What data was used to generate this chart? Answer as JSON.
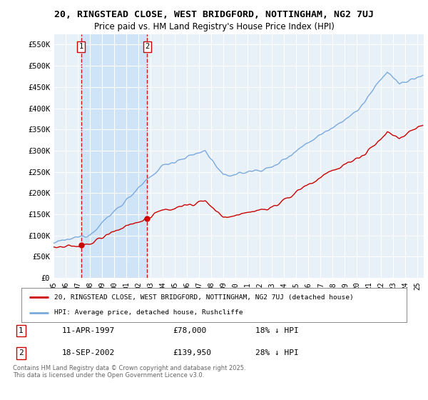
{
  "title": "20, RINGSTEAD CLOSE, WEST BRIDGFORD, NOTTINGHAM, NG2 7UJ",
  "subtitle": "Price paid vs. HM Land Registry's House Price Index (HPI)",
  "ylabel_vals": [
    0,
    50000,
    100000,
    150000,
    200000,
    250000,
    300000,
    350000,
    400000,
    450000,
    500000,
    550000
  ],
  "ylabel_strs": [
    "£0",
    "£50K",
    "£100K",
    "£150K",
    "£200K",
    "£250K",
    "£300K",
    "£350K",
    "£400K",
    "£450K",
    "£500K",
    "£550K"
  ],
  "ylim": [
    0,
    575000
  ],
  "xlim_start": 1995.0,
  "xlim_end": 2025.5,
  "sale1_x": 1997.27,
  "sale1_y": 78000,
  "sale1_label": "1",
  "sale2_x": 2002.72,
  "sale2_y": 139950,
  "sale2_label": "2",
  "shade_color": "#d0e4f7",
  "bg_color": "#e8f0f8",
  "grid_color": "#ffffff",
  "red_color": "#cc0000",
  "blue_color": "#7aaadd",
  "legend_line1": "20, RINGSTEAD CLOSE, WEST BRIDGFORD, NOTTINGHAM, NG2 7UJ (detached house)",
  "legend_line2": "HPI: Average price, detached house, Rushcliffe",
  "table_row1": [
    "1",
    "11-APR-1997",
    "£78,000",
    "18% ↓ HPI"
  ],
  "table_row2": [
    "2",
    "18-SEP-2002",
    "£139,950",
    "28% ↓ HPI"
  ],
  "footer": "Contains HM Land Registry data © Crown copyright and database right 2025.\nThis data is licensed under the Open Government Licence v3.0.",
  "title_fontsize": 9.5,
  "subtitle_fontsize": 8.5,
  "tick_fontsize": 7.5,
  "hpi_seed": 12345,
  "prop_seed": 67890
}
